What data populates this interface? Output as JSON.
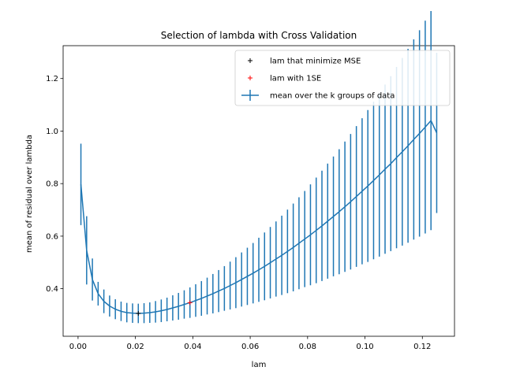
{
  "chart_data": {
    "type": "line",
    "title": "Selection of lambda with Cross Validation",
    "xlabel": "lam",
    "ylabel": "mean of residual over lambda",
    "xlim": [
      -0.0052,
      0.1312
    ],
    "ylim": [
      0.219,
      1.325
    ],
    "x_ticks": [
      0.0,
      0.02,
      0.04,
      0.06,
      0.08,
      0.1,
      0.12
    ],
    "x_tick_labels": [
      "0.00",
      "0.02",
      "0.04",
      "0.06",
      "0.08",
      "0.10",
      "0.12"
    ],
    "y_ticks": [
      0.4,
      0.6,
      0.8,
      1.0,
      1.2
    ],
    "y_tick_labels": [
      "0.4",
      "0.6",
      "0.8",
      "1.0",
      "1.2"
    ],
    "grid": false,
    "legend_position": "top-right",
    "series": [
      {
        "name": "mean over the k groups of data",
        "color": "#1f77b4",
        "marker": "errorbar",
        "x": [
          0.001,
          0.003,
          0.005,
          0.007,
          0.009,
          0.011,
          0.013,
          0.015,
          0.017,
          0.019,
          0.021,
          0.023,
          0.025,
          0.027,
          0.029,
          0.031,
          0.033,
          0.035,
          0.037,
          0.039,
          0.041,
          0.043,
          0.045,
          0.047,
          0.049,
          0.051,
          0.053,
          0.055,
          0.057,
          0.059,
          0.061,
          0.063,
          0.065,
          0.067,
          0.069,
          0.071,
          0.073,
          0.075,
          0.077,
          0.079,
          0.081,
          0.083,
          0.085,
          0.087,
          0.089,
          0.091,
          0.093,
          0.095,
          0.097,
          0.099,
          0.101,
          0.103,
          0.105,
          0.107,
          0.109,
          0.111,
          0.113,
          0.115,
          0.117,
          0.119,
          0.121,
          0.123,
          0.125
        ],
        "y": [
          0.797,
          0.546,
          0.435,
          0.381,
          0.352,
          0.334,
          0.322,
          0.314,
          0.309,
          0.307,
          0.306,
          0.307,
          0.309,
          0.312,
          0.316,
          0.321,
          0.327,
          0.333,
          0.34,
          0.347,
          0.355,
          0.363,
          0.372,
          0.381,
          0.391,
          0.401,
          0.412,
          0.423,
          0.435,
          0.447,
          0.459,
          0.472,
          0.485,
          0.499,
          0.513,
          0.527,
          0.542,
          0.557,
          0.573,
          0.589,
          0.605,
          0.622,
          0.639,
          0.657,
          0.675,
          0.693,
          0.712,
          0.731,
          0.751,
          0.771,
          0.791,
          0.812,
          0.833,
          0.855,
          0.876,
          0.899,
          0.921,
          0.944,
          0.968,
          0.991,
          1.015,
          1.04,
          0.993
        ],
        "error": [
          0.155,
          0.13,
          0.08,
          0.045,
          0.045,
          0.04,
          0.038,
          0.037,
          0.037,
          0.037,
          0.037,
          0.038,
          0.039,
          0.041,
          0.043,
          0.045,
          0.048,
          0.051,
          0.054,
          0.058,
          0.062,
          0.066,
          0.07,
          0.075,
          0.08,
          0.085,
          0.091,
          0.097,
          0.103,
          0.109,
          0.115,
          0.122,
          0.129,
          0.136,
          0.143,
          0.151,
          0.159,
          0.167,
          0.175,
          0.183,
          0.192,
          0.201,
          0.21,
          0.219,
          0.228,
          0.238,
          0.248,
          0.258,
          0.268,
          0.278,
          0.289,
          0.3,
          0.311,
          0.322,
          0.333,
          0.345,
          0.357,
          0.369,
          0.381,
          0.393,
          0.405,
          0.417,
          0.305
        ]
      },
      {
        "name": "lam that minimize MSE",
        "color": "#000000",
        "marker": "+",
        "x": [
          0.021
        ],
        "y": [
          0.306
        ]
      },
      {
        "name": "lam with 1SE",
        "color": "#ff0000",
        "marker": "+",
        "x": [
          0.039
        ],
        "y": [
          0.347
        ]
      }
    ],
    "legend": [
      {
        "label": "lam that minimize MSE",
        "color": "#000000",
        "marker": "+"
      },
      {
        "label": "lam with 1SE",
        "color": "#ff0000",
        "marker": "+"
      },
      {
        "label": "mean over the k groups of data",
        "color": "#1f77b4",
        "marker": "errorbar"
      }
    ]
  }
}
